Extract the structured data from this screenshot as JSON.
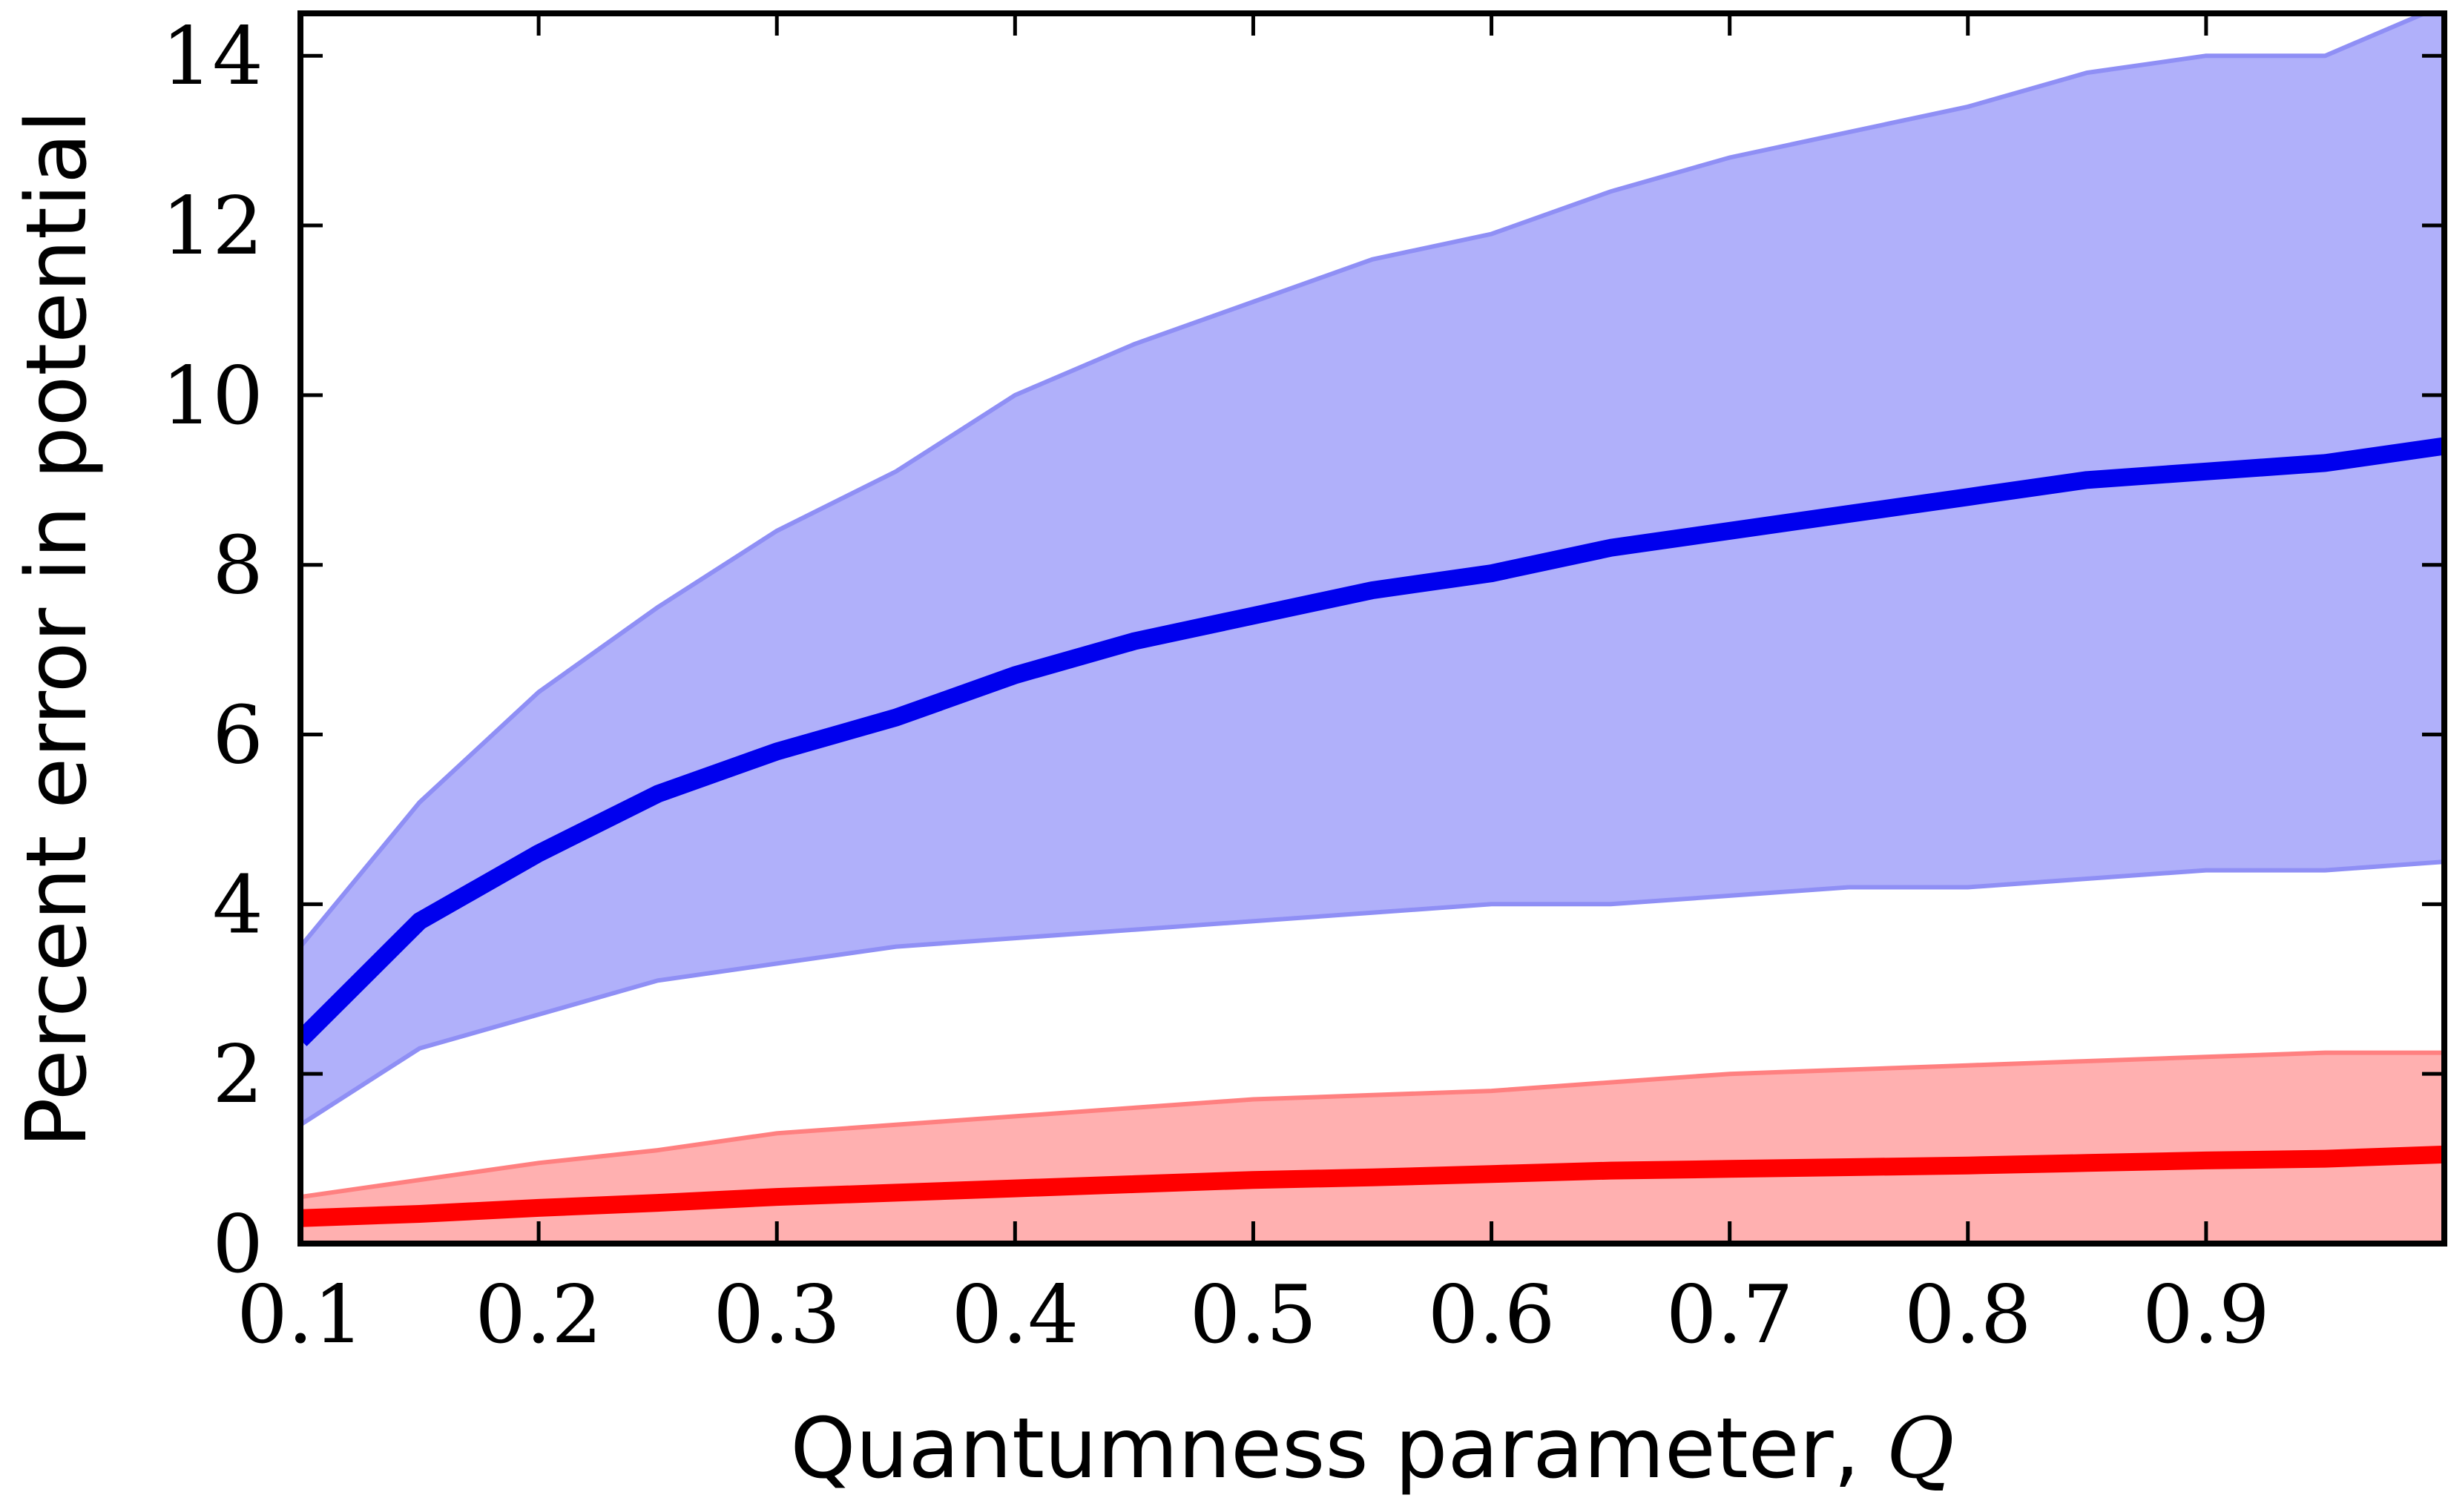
{
  "chart_data": {
    "type": "area",
    "xlabel": "Quantumness parameter, ",
    "xlabel_var": "Q",
    "ylabel": "Percent error in potential",
    "xlim": [
      0.1,
      1.0
    ],
    "ylim": [
      0,
      14.5
    ],
    "x_ticks": [
      "0.1",
      "0.2",
      "0.3",
      "0.4",
      "0.5",
      "0.6",
      "0.7",
      "0.8",
      "0.9"
    ],
    "y_ticks": [
      "0",
      "2",
      "4",
      "6",
      "8",
      "10",
      "12",
      "14"
    ],
    "grid": false,
    "legend": "none",
    "x": [
      0.1,
      0.15,
      0.2,
      0.25,
      0.3,
      0.35,
      0.4,
      0.45,
      0.5,
      0.55,
      0.6,
      0.65,
      0.7,
      0.75,
      0.8,
      0.85,
      0.9,
      0.95,
      1.0
    ],
    "series": [
      {
        "color": "#0000ee",
        "band_color": "#b0b0fa",
        "band_edge_color": "#8f8ff5",
        "mean": [
          2.4,
          3.8,
          4.6,
          5.3,
          5.8,
          6.2,
          6.7,
          7.1,
          7.4,
          7.7,
          7.9,
          8.2,
          8.4,
          8.6,
          8.8,
          9.0,
          9.1,
          9.2,
          9.4
        ],
        "upper": [
          3.5,
          5.2,
          6.5,
          7.5,
          8.4,
          9.1,
          10.0,
          10.6,
          11.1,
          11.6,
          11.9,
          12.4,
          12.8,
          13.1,
          13.4,
          13.8,
          14.0,
          14.0,
          14.6
        ],
        "lower": [
          1.4,
          2.3,
          2.7,
          3.1,
          3.3,
          3.5,
          3.6,
          3.7,
          3.8,
          3.9,
          4.0,
          4.0,
          4.1,
          4.2,
          4.2,
          4.3,
          4.4,
          4.4,
          4.5
        ]
      },
      {
        "color": "#ff0000",
        "band_color": "#ffb0b0",
        "band_edge_color": "#ff8080",
        "mean": [
          0.3,
          0.35,
          0.42,
          0.48,
          0.55,
          0.6,
          0.65,
          0.7,
          0.75,
          0.78,
          0.82,
          0.86,
          0.88,
          0.9,
          0.92,
          0.95,
          0.98,
          1.0,
          1.05
        ],
        "upper": [
          0.55,
          0.75,
          0.95,
          1.1,
          1.3,
          1.4,
          1.5,
          1.6,
          1.7,
          1.75,
          1.8,
          1.9,
          2.0,
          2.05,
          2.1,
          2.15,
          2.2,
          2.25,
          2.25
        ],
        "lower": [
          0,
          0,
          0,
          0,
          0,
          0,
          0,
          0,
          0,
          0,
          0,
          0,
          0,
          0,
          0,
          0,
          0,
          0,
          0
        ]
      }
    ]
  }
}
